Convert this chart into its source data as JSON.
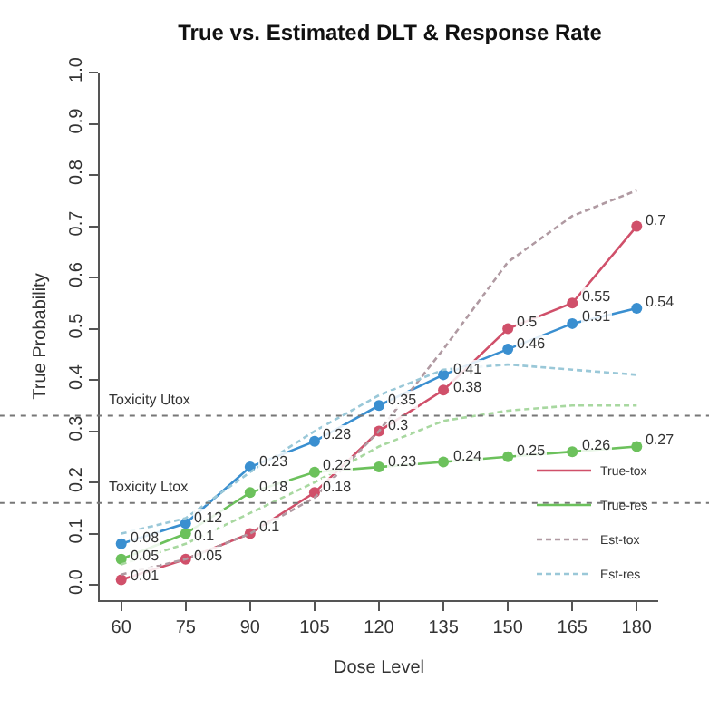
{
  "chart_data": {
    "type": "line",
    "title": "True vs. Estimated DLT & Response Rate",
    "xlabel": "Dose Level",
    "ylabel": "True Probability",
    "x": [
      60,
      75,
      90,
      105,
      120,
      135,
      150,
      165,
      180
    ],
    "series": [
      {
        "name": "True-tox",
        "color": "#d0506a",
        "marker": "circle",
        "line_style": "solid",
        "values": [
          0.01,
          0.05,
          0.1,
          0.18,
          0.3,
          0.38,
          0.5,
          0.55,
          0.7
        ],
        "value_labels": [
          "0.01",
          "0.05",
          "0.1",
          "0.18",
          "0.3",
          "0.38",
          "0.5",
          "0.55",
          "0.7"
        ]
      },
      {
        "name": "True-res",
        "color": "#6cc15c",
        "marker": "circle",
        "line_style": "solid",
        "values": [
          0.05,
          0.1,
          0.18,
          0.22,
          0.23,
          0.24,
          0.25,
          0.26,
          0.27
        ],
        "value_labels": [
          "0.05",
          "0.1",
          "0.18",
          "0.22",
          "0.23",
          "0.24",
          "0.25",
          "0.26",
          "0.27"
        ]
      },
      {
        "color": "#3a8fd0",
        "marker": "circle",
        "line_style": "solid",
        "values": [
          0.08,
          0.12,
          0.23,
          0.28,
          0.35,
          0.41,
          0.46,
          0.51,
          0.54
        ],
        "value_labels": [
          "0.08",
          "0.12",
          "0.23",
          "0.28",
          "0.35",
          "0.41",
          "0.46",
          "0.51",
          "0.54"
        ]
      },
      {
        "name": "Est-tox",
        "color": "#b09aa2",
        "marker": "none",
        "line_style": "dashed",
        "values": [
          0.02,
          0.05,
          0.1,
          0.17,
          0.3,
          0.46,
          0.63,
          0.72,
          0.77
        ]
      },
      {
        "name": "Est-res",
        "color": "#9ac8d8",
        "marker": "none",
        "line_style": "dashed",
        "values": [
          0.1,
          0.13,
          0.22,
          0.3,
          0.37,
          0.42,
          0.43,
          0.42,
          0.41
        ]
      },
      {
        "color": "#a8d8a0",
        "marker": "none",
        "line_style": "dashed",
        "values": [
          0.04,
          0.08,
          0.14,
          0.2,
          0.27,
          0.32,
          0.34,
          0.35,
          0.35
        ]
      }
    ],
    "ref_lines": [
      {
        "axis": "y",
        "value": 0.33,
        "label": "Toxicity Utox",
        "line_style": "dotted",
        "color": "#777777"
      },
      {
        "axis": "y",
        "value": 0.16,
        "label": "Toxicity Ltox",
        "line_style": "dotted",
        "color": "#777777"
      }
    ],
    "xlim": [
      55,
      185
    ],
    "xticks": [
      60,
      75,
      90,
      105,
      120,
      135,
      150,
      165,
      180
    ],
    "ylim": [
      -0.03,
      1.0
    ],
    "yticks": [
      {
        "value": 0,
        "label": "0.0"
      },
      0.1,
      0.2,
      0.3,
      0.4,
      0.5,
      0.6,
      0.7,
      0.8,
      0.9,
      {
        "value": 1,
        "label": "1.0"
      }
    ],
    "grid": false,
    "legend": "bottom right"
  }
}
